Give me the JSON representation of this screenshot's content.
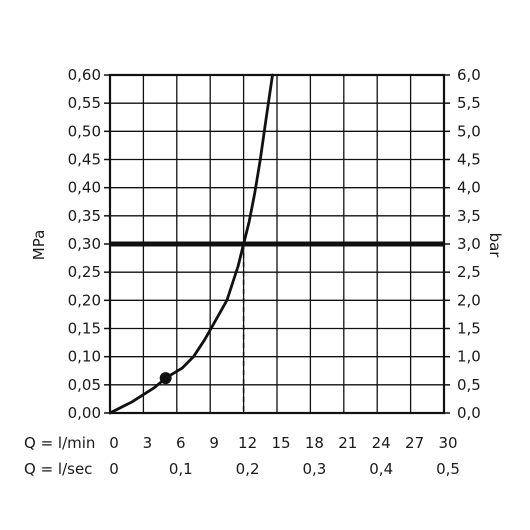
{
  "chart_data": {
    "type": "line",
    "title": "",
    "grid": true,
    "x_axes": [
      {
        "label": "Q = l/min",
        "range": [
          0,
          30
        ],
        "ticks": [
          0,
          3,
          6,
          9,
          12,
          15,
          18,
          21,
          24,
          27,
          30
        ],
        "tick_labels": [
          "0",
          "3",
          "6",
          "9",
          "12",
          "15",
          "18",
          "21",
          "24",
          "27",
          "30"
        ]
      },
      {
        "label": "Q = l/sec",
        "range": [
          0,
          0.5
        ],
        "ticks": [
          0,
          0.1,
          0.2,
          0.3,
          0.4,
          0.5
        ],
        "tick_labels": [
          "0",
          "0,1",
          "0,2",
          "0,3",
          "0,4",
          "0,5"
        ]
      }
    ],
    "y_left": {
      "label": "MPa",
      "range": [
        0,
        0.6
      ],
      "ticks": [
        0,
        0.05,
        0.1,
        0.15,
        0.2,
        0.25,
        0.3,
        0.35,
        0.4,
        0.45,
        0.5,
        0.55,
        0.6
      ],
      "tick_labels": [
        "0,00",
        "0,05",
        "0,10",
        "0,15",
        "0,20",
        "0,25",
        "0,30",
        "0,35",
        "0,40",
        "0,45",
        "0,50",
        "0,55",
        "0,60"
      ]
    },
    "y_right": {
      "label": "bar",
      "range": [
        0,
        6
      ],
      "ticks": [
        0,
        0.5,
        1,
        1.5,
        2,
        2.5,
        3,
        3.5,
        4,
        4.5,
        5,
        5.5,
        6
      ],
      "tick_labels": [
        "0,0",
        "0,5",
        "1,0",
        "1,5",
        "2,0",
        "2,5",
        "3,0",
        "3,5",
        "4,0",
        "4,5",
        "5,0",
        "5,5",
        "6,0"
      ]
    },
    "series": [
      {
        "x_unit": "l/min",
        "y_unit": "MPa",
        "points": [
          [
            0,
            0
          ],
          [
            2,
            0.02
          ],
          [
            4,
            0.045
          ],
          [
            5,
            0.062
          ],
          [
            6.5,
            0.08
          ],
          [
            7.5,
            0.1
          ],
          [
            8.5,
            0.13
          ],
          [
            9.5,
            0.165
          ],
          [
            10.5,
            0.2
          ],
          [
            11.5,
            0.26
          ],
          [
            12,
            0.3
          ],
          [
            12.5,
            0.34
          ],
          [
            13,
            0.39
          ],
          [
            13.5,
            0.45
          ],
          [
            14,
            0.52
          ],
          [
            14.6,
            0.6
          ]
        ]
      }
    ],
    "reference_line": {
      "y": 0.3
    },
    "marker": {
      "x": 5,
      "y": 0.062
    },
    "dashed_drop": {
      "x": 12,
      "y": 0.3
    }
  }
}
